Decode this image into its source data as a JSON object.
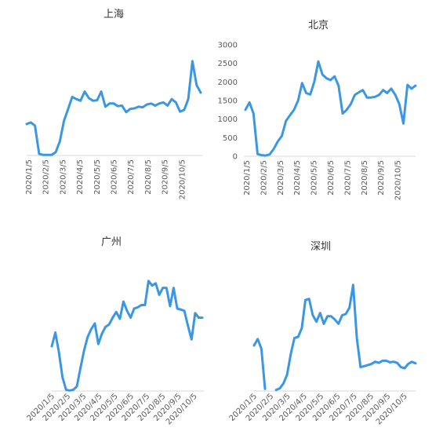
{
  "chart_data": [
    {
      "type": "line",
      "title": "上海",
      "x_ticks": [
        "2020/1/5",
        "2020/2/5",
        "2020/3/5",
        "2020/4/5",
        "2020/5/5",
        "2020/6/5",
        "2020/7/5",
        "2020/8/5",
        "2020/9/5",
        "2020/10/5"
      ],
      "y_ticks": [],
      "ylim": [
        0,
        1000
      ],
      "series": [
        {
          "color": "#3b97e3",
          "values": [
            290,
            305,
            275,
            15,
            5,
            5,
            5,
            30,
            130,
            320,
            430,
            540,
            520,
            505,
            590,
            530,
            505,
            510,
            590,
            450,
            480,
            480,
            455,
            460,
            400,
            430,
            435,
            450,
            445,
            470,
            480,
            460,
            480,
            490,
            460,
            520,
            490,
            405,
            420,
            520,
            870,
            650,
            580
          ]
        }
      ]
    },
    {
      "type": "line",
      "title": "北京",
      "x_ticks": [
        "2020/1/5",
        "2020/2/5",
        "2020/3/5",
        "2020/4/5",
        "2020/5/5",
        "2020/6/5",
        "2020/7/5",
        "2020/8/5",
        "2020/9/5",
        "2020/10/5"
      ],
      "y_ticks": [
        "0",
        "500",
        "1000",
        "1500",
        "2000",
        "2500",
        "3000"
      ],
      "ylim": [
        0,
        3000
      ],
      "series": [
        {
          "color": "#3b97e3",
          "values": [
            1250,
            1450,
            1150,
            60,
            30,
            20,
            50,
            200,
            400,
            550,
            950,
            1100,
            1250,
            1500,
            1970,
            1700,
            1660,
            2000,
            2550,
            2200,
            2100,
            2050,
            2150,
            1900,
            1150,
            1250,
            1400,
            1650,
            1720,
            1780,
            1580,
            1580,
            1600,
            1650,
            1780,
            1700,
            1820,
            1650,
            1400,
            880,
            1920,
            1820,
            1900
          ]
        }
      ]
    },
    {
      "type": "line",
      "title": "广州",
      "x_ticks": [
        "2020/1/5",
        "2020/2/5",
        "2020/3/5",
        "2020/4/5",
        "2020/5/5",
        "2020/6/5",
        "2020/7/5",
        "2020/8/5",
        "2020/9/5",
        "2020/10/5"
      ],
      "y_ticks": [],
      "ylim": [
        0,
        1000
      ],
      "series": [
        {
          "color": "#3b97e3",
          "values": [
            390,
            510,
            340,
            120,
            10,
            5,
            10,
            40,
            200,
            350,
            470,
            540,
            590,
            410,
            500,
            560,
            580,
            640,
            690,
            630,
            780,
            700,
            640,
            720,
            730,
            750,
            750,
            960,
            920,
            940,
            840,
            900,
            900,
            740,
            900,
            720,
            710,
            700,
            570,
            450,
            680,
            640,
            640
          ]
        }
      ]
    },
    {
      "type": "line",
      "title": "深圳",
      "x_ticks": [
        "2020/1/5",
        "2020/2/5",
        "2020/3/5",
        "2020/4/5",
        "2020/5/5",
        "2020/6/5",
        "2020/7/5",
        "2020/8/5",
        "2020/9/5",
        "2020/10/5"
      ],
      "y_ticks": [],
      "ylim": [
        0,
        1000
      ],
      "series": [
        {
          "color": "#3b97e3",
          "values": [
            420,
            480,
            390,
            20,
            null,
            null,
            10,
            25,
            70,
            150,
            340,
            490,
            500,
            580,
            840,
            850,
            700,
            640,
            720,
            620,
            690,
            690,
            660,
            620,
            700,
            710,
            770,
            980,
            490,
            220,
            230,
            240,
            250,
            270,
            260,
            280,
            280,
            265,
            270,
            260,
            220,
            210,
            250,
            270,
            255
          ]
        }
      ]
    }
  ]
}
